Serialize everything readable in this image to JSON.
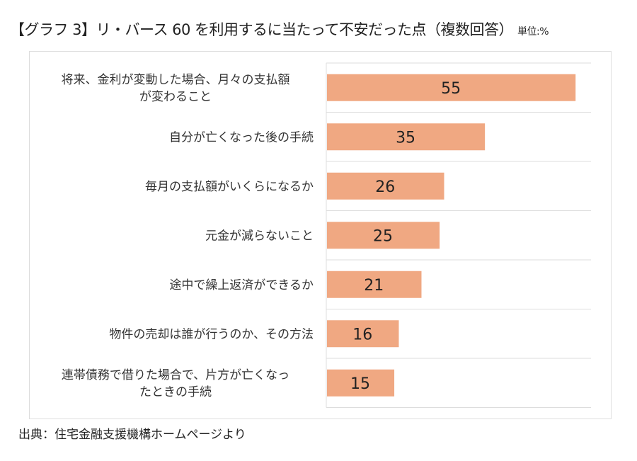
{
  "chart_data": {
    "type": "bar",
    "orientation": "horizontal",
    "title": "【グラフ 3】リ・バース 60 を利用するに当たって不安だった点（複数回答）",
    "unit": "単位:%",
    "categories": [
      [
        "将来、金利が変動した場合、月々の支払額",
        "が変わること"
      ],
      [
        "自分が亡くなった後の手続"
      ],
      [
        "毎月の支払額がいくらになるか"
      ],
      [
        "元金が減らないこと"
      ],
      [
        "途中で繰上返済ができるか"
      ],
      [
        "物件の売却は誰が行うのか、その方法"
      ],
      [
        "連帯債務で借りた場合で、片方が亡くなっ",
        "たときの手続"
      ]
    ],
    "values": [
      55,
      35,
      26,
      25,
      21,
      16,
      15
    ],
    "xlim": [
      0,
      58.4
    ],
    "grid": true,
    "bar_color": "#f0a882",
    "source": "出典：住宅金融支援機構ホームページより"
  }
}
